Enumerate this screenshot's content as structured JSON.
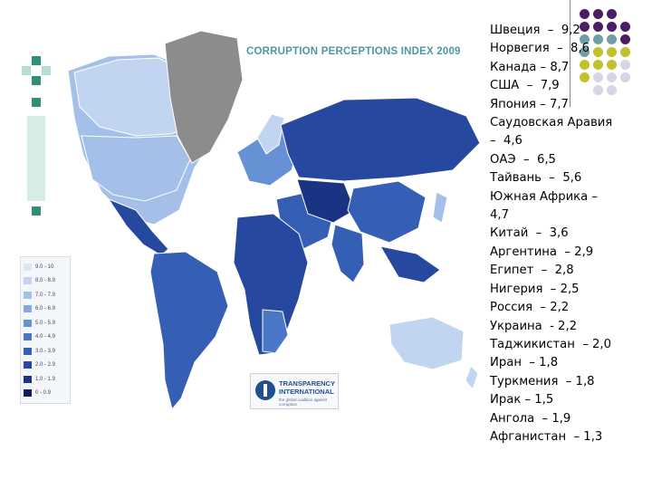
{
  "map": {
    "title": "CORRUPTION PERCEPTIONS INDEX 2009",
    "legend": [
      {
        "label": "9.0 - 10",
        "color": "#dbe6f6"
      },
      {
        "label": "8.0 - 8.9",
        "color": "#c2d5f0"
      },
      {
        "label": "7.0 - 7.9",
        "color": "#a4c0e8"
      },
      {
        "label": "6.0 - 6.9",
        "color": "#85aadf"
      },
      {
        "label": "5.0 - 5.9",
        "color": "#6691d4"
      },
      {
        "label": "4.0 - 4.9",
        "color": "#4a78c6"
      },
      {
        "label": "3.0 - 3.9",
        "color": "#355fb5"
      },
      {
        "label": "2.0 - 2.9",
        "color": "#26489e"
      },
      {
        "label": "1.0 - 1.9",
        "color": "#1b3383"
      },
      {
        "label": "0 - 0.9",
        "color": "#0f1f57"
      }
    ],
    "no_data_color": "#8c8c8c",
    "logo": {
      "line1": "TRANSPARENCY",
      "line2": "INTERNATIONAL",
      "tagline": "the global coalition against corruption"
    }
  },
  "ratings": [
    "Швеция  –  9,2",
    "Норвегия  –  8,6",
    "Канада – 8,7",
    "США  –  7,9",
    "Япония – 7,7",
    "Саудовская Аравия",
    "–  4,6",
    "ОАЭ  –  6,5",
    "Тайвань  –  5,6",
    "Южная Африка –",
    "4,7",
    "Китай  –  3,6",
    "Аргентина  – 2,9",
    "Египет  –  2,8",
    "Нигерия  – 2,5",
    "Россия  – 2,2",
    "Украина  - 2,2",
    "Таджикистан  – 2,0",
    "Иран  – 1,8",
    "Туркмения  – 1,8",
    "Ирак – 1,5",
    "Ангола  – 1,9",
    "Афганистан  – 1,3"
  ],
  "decor_colors": {
    "purple": "#4b1e63",
    "teal": "#6f9ea3",
    "olive": "#c2c02b",
    "lavender": "#d6d4e6"
  }
}
